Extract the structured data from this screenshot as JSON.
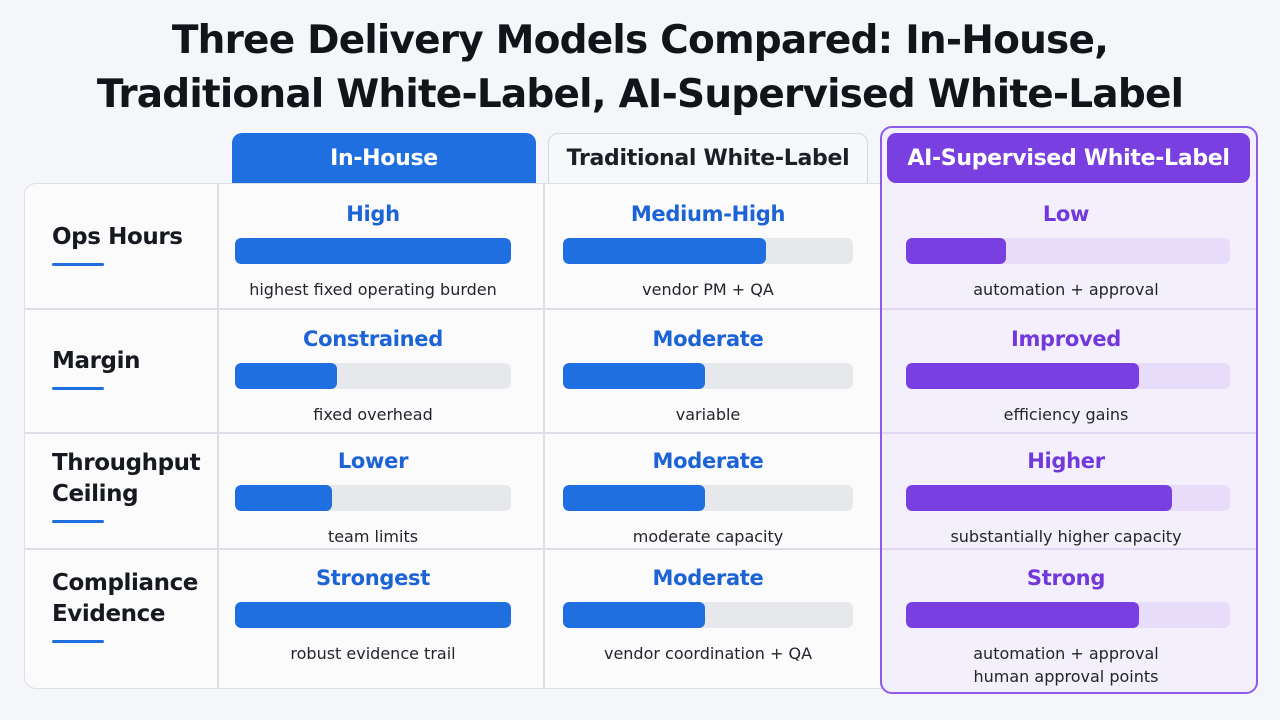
{
  "title": {
    "line1": "Three Delivery Models Compared: In-House,",
    "line2": "Traditional White-Label, AI-Supervised White-Label"
  },
  "columns": {
    "inhouse": "In-House",
    "traditional": "Traditional White-Label",
    "ai": "AI-Supervised White-Label"
  },
  "rows": [
    {
      "label": [
        "Ops Hours"
      ],
      "inhouse": {
        "level": "High",
        "fill": 1.0,
        "note": [
          "highest fixed operating burden"
        ]
      },
      "traditional": {
        "level": "Medium-High",
        "fill": 0.7,
        "note": [
          "vendor PM + QA"
        ]
      },
      "ai": {
        "level": "Low",
        "fill": 0.31,
        "note": [
          "automation + approval"
        ]
      }
    },
    {
      "label": [
        "Margin"
      ],
      "inhouse": {
        "level": "Constrained",
        "fill": 0.37,
        "note": [
          "fixed overhead"
        ]
      },
      "traditional": {
        "level": "Moderate",
        "fill": 0.49,
        "note": [
          "variable"
        ]
      },
      "ai": {
        "level": "Improved",
        "fill": 0.72,
        "note": [
          "efficiency gains"
        ]
      }
    },
    {
      "label": [
        "Throughput",
        "Ceiling"
      ],
      "inhouse": {
        "level": "Lower",
        "fill": 0.35,
        "note": [
          "team limits"
        ]
      },
      "traditional": {
        "level": "Moderate",
        "fill": 0.49,
        "note": [
          "moderate capacity"
        ]
      },
      "ai": {
        "level": "Higher",
        "fill": 0.82,
        "note": [
          "substantially higher capacity"
        ]
      }
    },
    {
      "label": [
        "Compliance",
        "Evidence"
      ],
      "inhouse": {
        "level": "Strongest",
        "fill": 1.0,
        "note": [
          "robust evidence trail"
        ]
      },
      "traditional": {
        "level": "Moderate",
        "fill": 0.49,
        "note": [
          "vendor coordination + QA"
        ]
      },
      "ai": {
        "level": "Strong",
        "fill": 0.72,
        "note": [
          "automation + approval",
          "human approval points"
        ]
      }
    }
  ]
}
